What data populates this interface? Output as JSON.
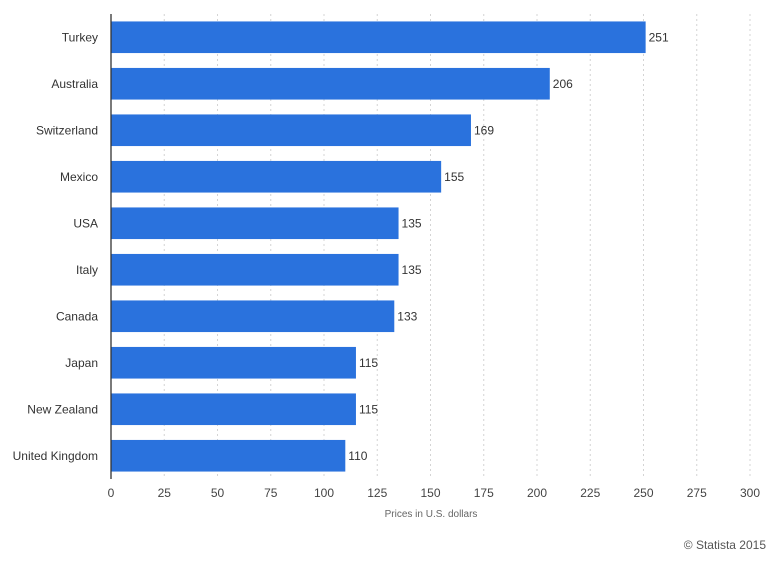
{
  "chart_data": {
    "type": "bar",
    "orientation": "horizontal",
    "categories": [
      "Turkey",
      "Australia",
      "Switzerland",
      "Mexico",
      "USA",
      "Italy",
      "Canada",
      "Japan",
      "New Zealand",
      "United Kingdom"
    ],
    "values": [
      251,
      206,
      169,
      155,
      135,
      135,
      133,
      115,
      115,
      110
    ],
    "value_labels": [
      "251",
      "206",
      "169",
      "155",
      "135",
      "135",
      "133",
      "115",
      "115",
      "110"
    ],
    "title": "",
    "xlabel": "Prices in U.S. dollars",
    "ylabel": "",
    "xlim": [
      0,
      300
    ],
    "xticks": [
      0,
      25,
      50,
      75,
      100,
      125,
      150,
      175,
      200,
      225,
      250,
      275,
      300
    ],
    "xtick_labels": [
      "0",
      "25",
      "50",
      "75",
      "100",
      "125",
      "150",
      "175",
      "200",
      "225",
      "250",
      "275",
      "300"
    ],
    "grid": true,
    "bar_color": "#2a72dd"
  },
  "footer": {
    "credit": "© Statista 2015"
  }
}
